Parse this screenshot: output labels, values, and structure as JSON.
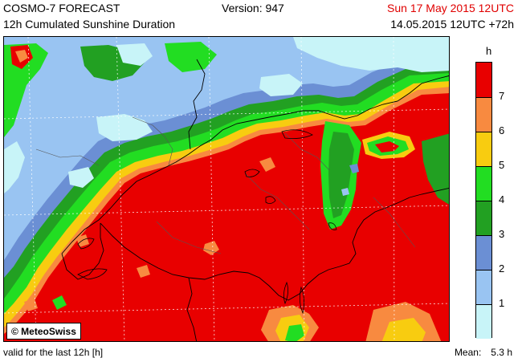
{
  "header": {
    "model": "COSMO-7 FORECAST",
    "product": "12h Cumulated Sunshine Duration",
    "version": "Version: 947",
    "valid_time": "Sun 17 May 2015 12UTC",
    "run_time": "14.05.2015 12UTC +72h"
  },
  "footer": {
    "validity": "valid for the last 12h [h]",
    "mean_label": "Mean:",
    "mean_value": "5.3 h"
  },
  "copyright": "© MeteoSwiss",
  "legend": {
    "unit": "h",
    "ticks": [
      "1",
      "2",
      "3",
      "4",
      "5",
      "6",
      "7"
    ],
    "colors": [
      "#c8f4f8",
      "#99c4f2",
      "#6b8fd4",
      "#22a022",
      "#22dd22",
      "#f8cc10",
      "#f88a40",
      "#e80000"
    ]
  },
  "map_colors": {
    "very_low": "#c8f4f8",
    "low": "#99c4f2",
    "mid_low": "#6b8fd4",
    "mid": "#22a022",
    "mid_high": "#22dd22",
    "high_yellow": "#f8cc10",
    "high_orange": "#f88a40",
    "max": "#e80000"
  }
}
